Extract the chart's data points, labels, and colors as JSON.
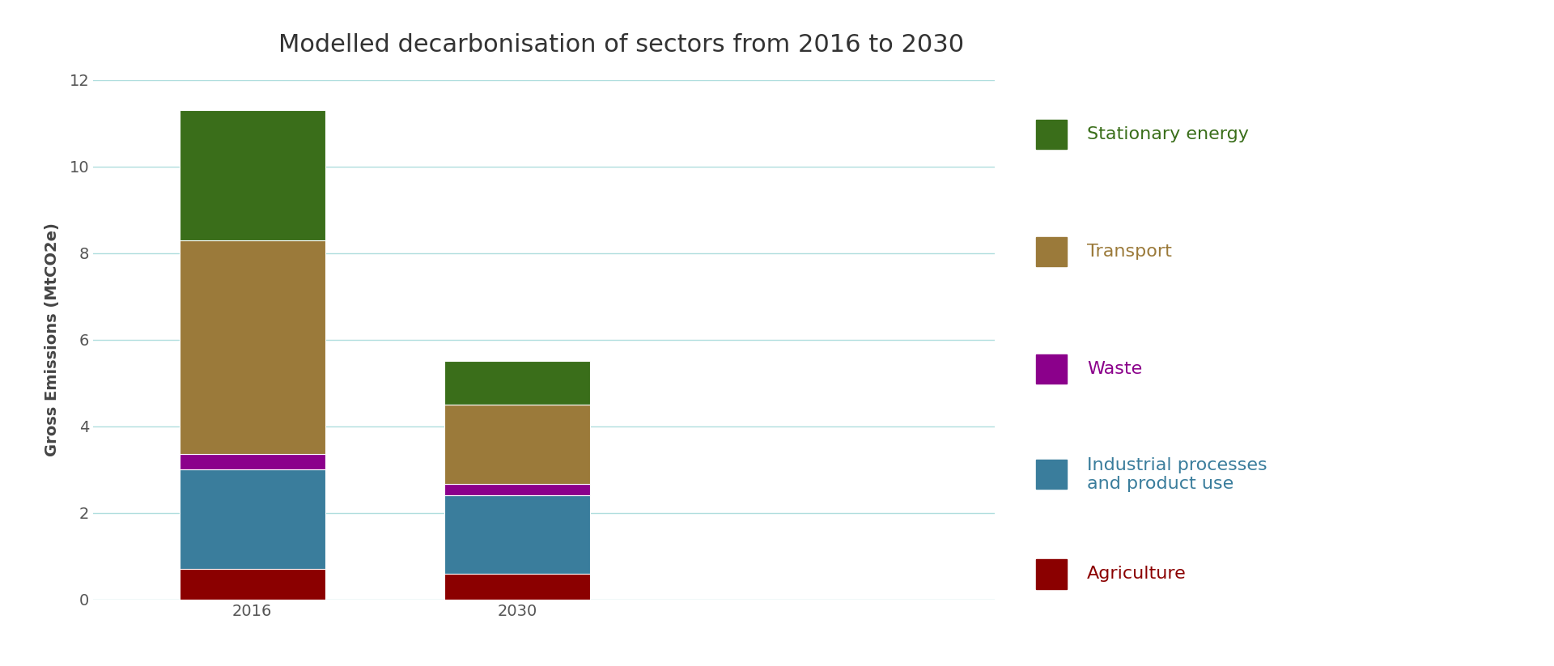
{
  "title": "Modelled decarbonisation of sectors from 2016 to 2030",
  "ylabel": "Gross Emissions (MtCO2e)",
  "categories": [
    "2016",
    "2030"
  ],
  "segments": [
    {
      "label": "Agriculture",
      "color": "#8B0000",
      "label_color": "#8B0000",
      "values": [
        0.7,
        0.6
      ]
    },
    {
      "label": "Industrial processes\nand product use",
      "color": "#3a7d9c",
      "label_color": "#3a7d9c",
      "values": [
        2.3,
        1.8
      ]
    },
    {
      "label": "Waste",
      "color": "#8B008B",
      "label_color": "#8B008B",
      "values": [
        0.35,
        0.27
      ]
    },
    {
      "label": "Transport",
      "color": "#9b7a3a",
      "label_color": "#9b7a3a",
      "values": [
        4.95,
        1.83
      ]
    },
    {
      "label": "Stationary energy",
      "color": "#3a6e1a",
      "label_color": "#3a6e1a",
      "values": [
        3.0,
        1.0
      ]
    }
  ],
  "ylim": [
    0,
    12
  ],
  "yticks": [
    0,
    2,
    4,
    6,
    8,
    10,
    12
  ],
  "background_color": "#ffffff",
  "grid_color": "#b0dede",
  "title_fontsize": 22,
  "label_fontsize": 14,
  "tick_fontsize": 14,
  "legend_fontsize": 16,
  "bar_width": 0.55,
  "bar_positions": [
    1,
    2
  ],
  "xlim": [
    0.4,
    3.8
  ]
}
